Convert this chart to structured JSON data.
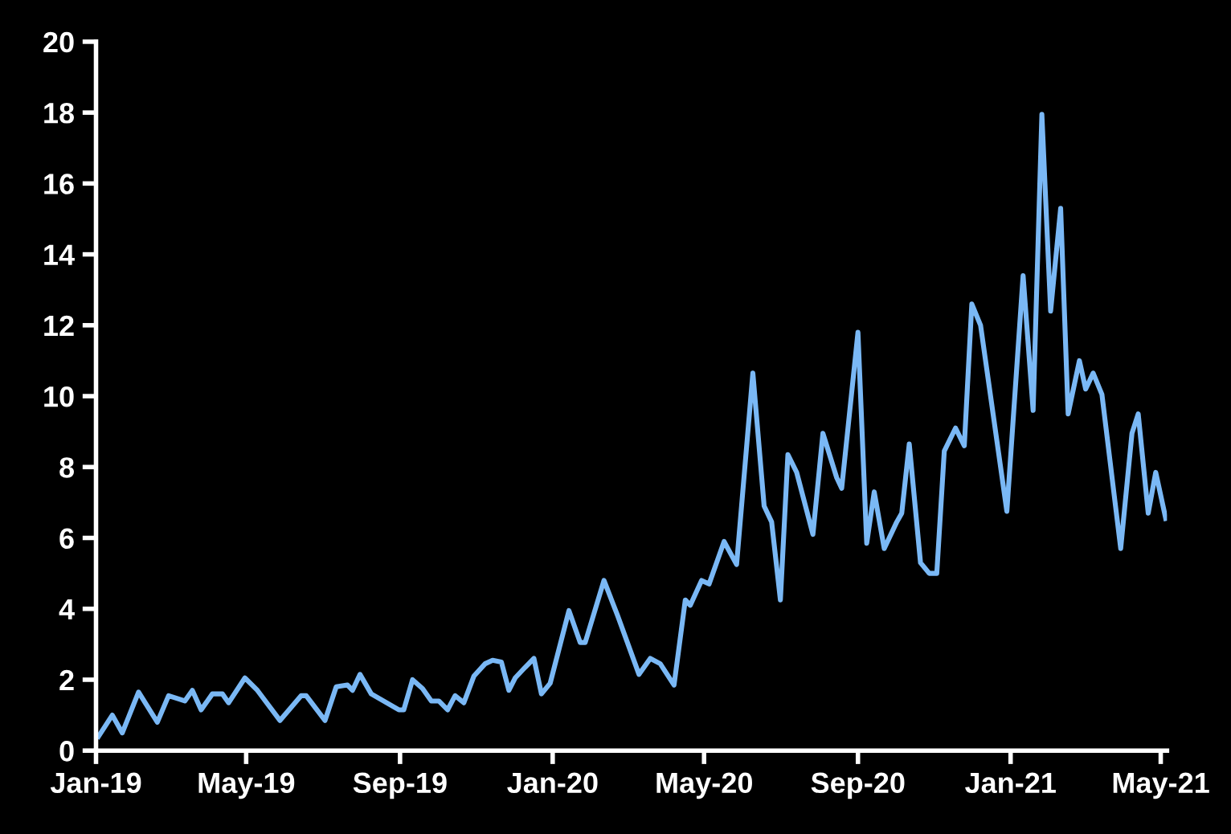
{
  "chart_data": {
    "type": "line",
    "x": [
      "2019-01-03",
      "2019-01-14",
      "2019-01-22",
      "2019-02-04",
      "2019-02-19",
      "2019-02-28",
      "2019-03-13",
      "2019-03-19",
      "2019-03-26",
      "2019-04-04",
      "2019-04-12",
      "2019-04-17",
      "2019-04-30",
      "2019-05-10",
      "2019-05-28",
      "2019-06-14",
      "2019-06-18",
      "2019-07-03",
      "2019-07-12",
      "2019-07-21",
      "2019-07-25",
      "2019-07-31",
      "2019-08-09",
      "2019-08-31",
      "2019-09-04",
      "2019-09-11",
      "2019-09-19",
      "2019-09-26",
      "2019-10-02",
      "2019-10-09",
      "2019-10-15",
      "2019-10-22",
      "2019-10-30",
      "2019-11-08",
      "2019-11-14",
      "2019-11-21",
      "2019-11-27",
      "2019-12-02",
      "2019-12-10",
      "2019-12-17",
      "2019-12-23",
      "2019-12-30",
      "2020-01-14",
      "2020-01-23",
      "2020-01-27",
      "2020-02-11",
      "2020-02-22",
      "2020-03-10",
      "2020-03-19",
      "2020-03-27",
      "2020-04-07",
      "2020-04-16",
      "2020-04-20",
      "2020-04-29",
      "2020-05-05",
      "2020-05-17",
      "2020-05-27",
      "2020-06-09",
      "2020-06-18",
      "2020-06-24",
      "2020-07-01",
      "2020-07-07",
      "2020-07-14",
      "2020-07-27",
      "2020-08-04",
      "2020-08-15",
      "2020-08-19",
      "2020-09-01",
      "2020-09-08",
      "2020-09-14",
      "2020-09-22",
      "2020-10-02",
      "2020-10-06",
      "2020-10-12",
      "2020-10-21",
      "2020-10-28",
      "2020-11-03",
      "2020-11-09",
      "2020-11-18",
      "2020-11-25",
      "2020-12-01",
      "2020-12-08",
      "2020-12-29",
      "2021-01-11",
      "2021-01-19",
      "2021-01-26",
      "2021-02-02",
      "2021-02-10",
      "2021-02-16",
      "2021-02-25",
      "2021-03-02",
      "2021-03-08",
      "2021-03-15",
      "2021-03-30",
      "2021-04-08",
      "2021-04-13",
      "2021-04-21",
      "2021-04-27",
      "2021-05-05"
    ],
    "series": [
      {
        "color": "#7ab8f5",
        "values": [
          0.4,
          1.0,
          0.5,
          1.65,
          0.8,
          1.55,
          1.4,
          1.7,
          1.15,
          1.6,
          1.6,
          1.35,
          2.05,
          1.7,
          0.85,
          1.55,
          1.55,
          0.85,
          1.8,
          1.85,
          1.7,
          2.15,
          1.6,
          1.15,
          1.15,
          2.0,
          1.75,
          1.4,
          1.4,
          1.15,
          1.55,
          1.35,
          2.1,
          2.45,
          2.55,
          2.5,
          1.7,
          2.05,
          2.35,
          2.6,
          1.6,
          1.9,
          3.95,
          3.05,
          3.05,
          4.8,
          3.8,
          2.15,
          2.6,
          2.45,
          1.85,
          4.25,
          4.1,
          4.8,
          4.7,
          5.9,
          5.25,
          10.65,
          6.9,
          6.45,
          4.25,
          8.35,
          7.85,
          6.1,
          8.95,
          7.7,
          7.4,
          11.8,
          5.85,
          7.3,
          5.7,
          6.45,
          6.7,
          8.65,
          5.3,
          5.0,
          5.0,
          8.45,
          9.1,
          8.6,
          12.6,
          12.0,
          6.75,
          13.4,
          9.6,
          17.95,
          12.4,
          15.3,
          9.5,
          11.0,
          10.2,
          10.65,
          10.05,
          5.7,
          8.95,
          9.5,
          6.7,
          7.85,
          6.55
        ]
      }
    ],
    "xlim": [
      "2019-01-01",
      "2021-05-06"
    ],
    "xticks": [
      {
        "value": "2019-01-01",
        "label": "Jan-19"
      },
      {
        "value": "2019-05-01",
        "label": "May-19"
      },
      {
        "value": "2019-09-01",
        "label": "Sep-19"
      },
      {
        "value": "2020-01-01",
        "label": "Jan-20"
      },
      {
        "value": "2020-05-01",
        "label": "May-20"
      },
      {
        "value": "2020-09-01",
        "label": "Sep-20"
      },
      {
        "value": "2021-01-01",
        "label": "Jan-21"
      },
      {
        "value": "2021-05-01",
        "label": "May-21"
      }
    ],
    "ylim": [
      0,
      20
    ],
    "yticks": [
      0,
      2,
      4,
      6,
      8,
      10,
      12,
      14,
      16,
      18,
      20
    ],
    "grid": false,
    "legend": false,
    "marker": "none",
    "line_style": "solid"
  }
}
